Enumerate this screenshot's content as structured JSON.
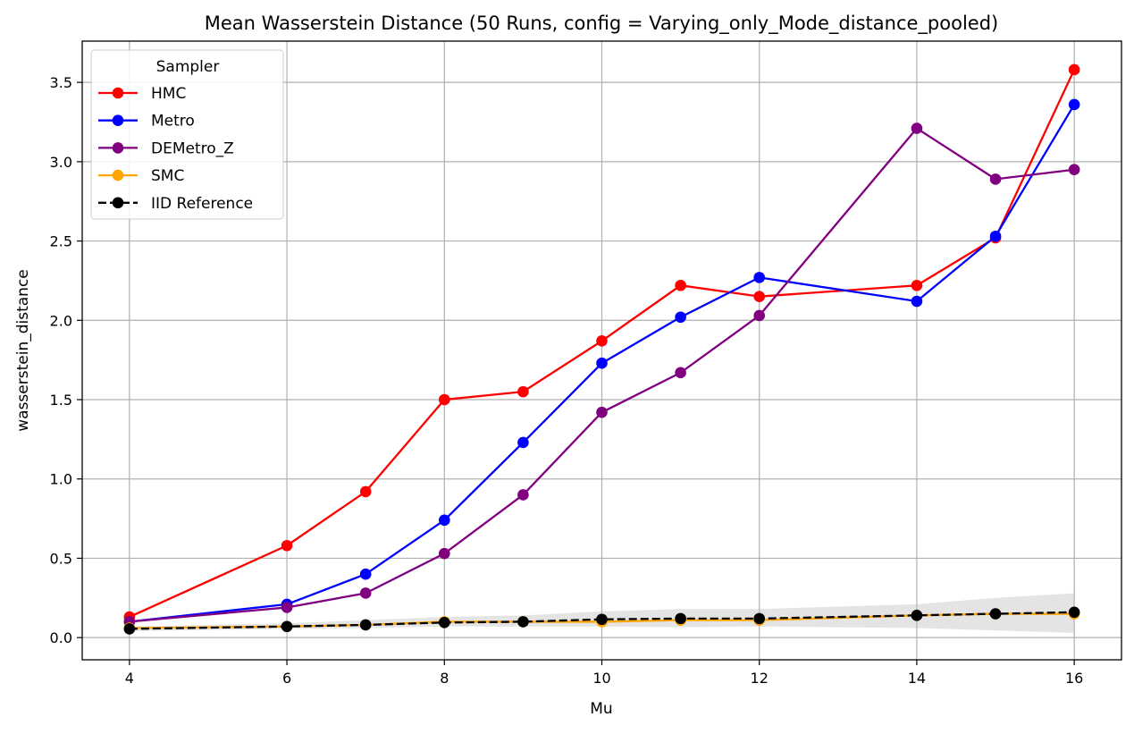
{
  "chart_data": {
    "type": "line",
    "title": "Mean Wasserstein Distance (50 Runs, config = Varying_only_Mode_distance_pooled)",
    "xlabel": "Mu",
    "ylabel": "wasserstein_distance",
    "x": [
      4,
      6,
      7,
      8,
      9,
      10,
      11,
      12,
      14,
      15,
      16
    ],
    "xlim": [
      3.4,
      16.6
    ],
    "ylim": [
      -0.14,
      3.76
    ],
    "xticks": [
      4,
      6,
      8,
      10,
      12,
      14,
      16
    ],
    "xtick_labels": [
      "4",
      "6",
      "8",
      "10",
      "12",
      "14",
      "16"
    ],
    "yticks": [
      0.0,
      0.5,
      1.0,
      1.5,
      2.0,
      2.5,
      3.0,
      3.5
    ],
    "ytick_labels": [
      "0.0",
      "0.5",
      "1.0",
      "1.5",
      "2.0",
      "2.5",
      "3.0",
      "3.5"
    ],
    "grid": true,
    "legend": {
      "title": "Sampler",
      "placement": "upper-left"
    },
    "series": [
      {
        "name": "HMC",
        "color": "#ff0000",
        "dashed": false,
        "values": [
          0.13,
          0.58,
          0.92,
          1.5,
          1.55,
          1.87,
          2.22,
          2.15,
          2.22,
          2.52,
          3.58
        ]
      },
      {
        "name": "Metro",
        "color": "#0000ff",
        "dashed": false,
        "values": [
          0.1,
          0.21,
          0.4,
          0.74,
          1.23,
          1.73,
          2.02,
          2.27,
          2.12,
          2.53,
          3.36
        ]
      },
      {
        "name": "DEMetro_Z",
        "color": "#800080",
        "dashed": false,
        "values": [
          0.1,
          0.19,
          0.28,
          0.53,
          0.9,
          1.42,
          1.67,
          2.03,
          3.21,
          2.89,
          2.95
        ]
      },
      {
        "name": "SMC",
        "color": "#ffa500",
        "dashed": false,
        "values": [
          0.06,
          0.07,
          0.08,
          0.1,
          0.1,
          0.1,
          0.11,
          0.11,
          0.14,
          0.15,
          0.15
        ]
      },
      {
        "name": "IID Reference",
        "color": "#000000",
        "dashed": true,
        "values": [
          0.055,
          0.07,
          0.08,
          0.095,
          0.1,
          0.115,
          0.12,
          0.12,
          0.14,
          0.15,
          0.16
        ]
      }
    ],
    "band": {
      "color": "#bbbbbb",
      "lower": [
        0.04,
        0.055,
        0.06,
        0.07,
        0.07,
        0.07,
        0.065,
        0.07,
        0.06,
        0.045,
        0.03
      ],
      "upper": [
        0.07,
        0.09,
        0.11,
        0.13,
        0.14,
        0.165,
        0.18,
        0.18,
        0.21,
        0.25,
        0.28
      ]
    }
  }
}
